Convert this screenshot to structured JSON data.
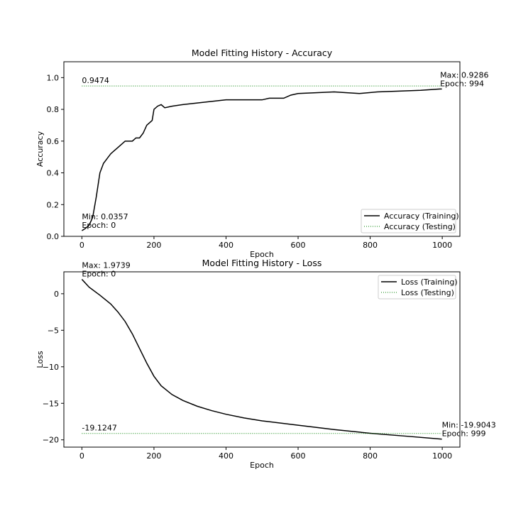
{
  "chart_data": [
    {
      "type": "line",
      "title": "Model Fitting History - Accuracy",
      "x_label": "Epoch",
      "y_label": "Accuracy",
      "xlim": [
        -50,
        1049
      ],
      "ylim": [
        0,
        1.1
      ],
      "xticks": [
        0,
        200,
        400,
        600,
        800,
        1000
      ],
      "yticks": [
        {
          "value": 0,
          "label": "0.0"
        },
        {
          "value": 0.2,
          "label": "0.2"
        },
        {
          "value": 0.4,
          "label": "0.4"
        },
        {
          "value": 0.6,
          "label": "0.6"
        },
        {
          "value": 0.8,
          "label": "0.8"
        },
        {
          "value": 1,
          "label": "1.0"
        }
      ],
      "legend": "lower right",
      "series": [
        {
          "name": "Accuracy (Training)",
          "color": "#000000",
          "style": "solid",
          "x": [
            0,
            10,
            20,
            30,
            40,
            50,
            60,
            70,
            80,
            90,
            100,
            110,
            120,
            140,
            150,
            160,
            170,
            180,
            195,
            200,
            210,
            220,
            230,
            250,
            280,
            320,
            360,
            400,
            500,
            520,
            560,
            580,
            600,
            700,
            770,
            820,
            940,
            994,
            999
          ],
          "values": [
            0.0357,
            0.05,
            0.07,
            0.12,
            0.25,
            0.4,
            0.46,
            0.49,
            0.52,
            0.54,
            0.56,
            0.58,
            0.6,
            0.6,
            0.62,
            0.62,
            0.65,
            0.7,
            0.73,
            0.8,
            0.82,
            0.83,
            0.81,
            0.82,
            0.83,
            0.84,
            0.85,
            0.86,
            0.86,
            0.87,
            0.87,
            0.89,
            0.9,
            0.91,
            0.9,
            0.91,
            0.92,
            0.9286,
            0.9286
          ]
        },
        {
          "name": "Accuracy (Testing)",
          "color": "#008000",
          "style": "dotted",
          "x": [
            0,
            999
          ],
          "values": [
            0.9474,
            0.9474
          ]
        }
      ],
      "annotations": [
        {
          "lines": [
            "Max: 0.9286",
            "Epoch: 994"
          ],
          "x": 994,
          "y": 0.9286,
          "color": "#0000ff"
        },
        {
          "lines": [
            "Min: 0.0357",
            "Epoch: 0"
          ],
          "x": 0,
          "y": 0.0357,
          "color": "#0000ff"
        },
        {
          "lines": [
            "0.9474"
          ],
          "x": 0,
          "y": 0.9474,
          "color": "#006400"
        }
      ]
    },
    {
      "type": "line",
      "title": "Model Fitting History - Loss",
      "x_label": "Epoch",
      "y_label": "Loss",
      "xlim": [
        -50,
        1049
      ],
      "ylim": [
        -21,
        3
      ],
      "xticks": [
        0,
        200,
        400,
        600,
        800,
        1000
      ],
      "yticks": [
        {
          "value": -20,
          "label": "−20"
        },
        {
          "value": -15,
          "label": "−15"
        },
        {
          "value": -10,
          "label": "−10"
        },
        {
          "value": -5,
          "label": "−5"
        },
        0
      ],
      "legend": "upper right",
      "series": [
        {
          "name": "Loss (Training)",
          "color": "#000000",
          "style": "solid",
          "x": [
            0,
            20,
            50,
            80,
            100,
            120,
            140,
            160,
            180,
            200,
            220,
            250,
            280,
            320,
            360,
            400,
            450,
            500,
            600,
            700,
            800,
            900,
            999
          ],
          "values": [
            1.9739,
            0.9,
            -0.2,
            -1.4,
            -2.5,
            -3.8,
            -5.5,
            -7.5,
            -9.5,
            -11.3,
            -12.6,
            -13.8,
            -14.6,
            -15.4,
            -16,
            -16.5,
            -17,
            -17.4,
            -18,
            -18.6,
            -19.1,
            -19.5,
            -19.9043
          ]
        },
        {
          "name": "Loss (Testing)",
          "color": "#008000",
          "style": "dotted",
          "x": [
            0,
            999
          ],
          "values": [
            -19.1247,
            -19.1247
          ]
        }
      ],
      "annotations": [
        {
          "lines": [
            "Max: 1.9739",
            "Epoch: 0"
          ],
          "x": 0,
          "y": 1.9739,
          "color": "#0000ff"
        },
        {
          "lines": [
            "Min: -19.9043",
            "Epoch: 999"
          ],
          "x": 999,
          "y": -19.9043,
          "color": "#0000ff"
        },
        {
          "lines": [
            "-19.1247"
          ],
          "x": 0,
          "y": -19.1247,
          "color": "#006400"
        }
      ]
    }
  ]
}
